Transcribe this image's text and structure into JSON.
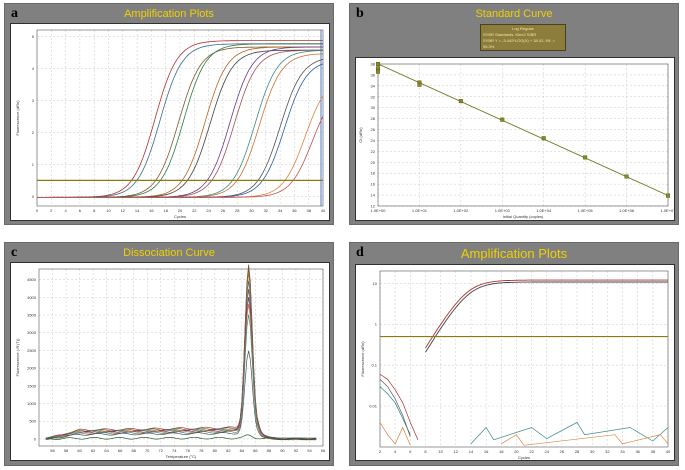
{
  "panels": {
    "a": {
      "tag": "a",
      "title": "Amplification Plots",
      "ylabel": "Fluorescence (dRn)",
      "xlabel": "Cycles"
    },
    "b": {
      "tag": "b",
      "title": "Standard Curve",
      "ylabel": "Ct (dRn)",
      "xlabel": "Initial Quantity (copies)",
      "legend": {
        "title": "Log Regular",
        "line1": "SYBR Standards, Kleo2 SIBR",
        "line2": "SYBR Y = -3.442*LOG(X) + 38.02, Eff. = 95.3%"
      }
    },
    "c": {
      "tag": "c",
      "title": "Dissociation Curve",
      "ylabel": "Fluorescence (-R'(T))",
      "xlabel": "Temperature (°C)"
    },
    "d": {
      "tag": "d",
      "title": "Amplification Plots",
      "ylabel": "Fluorescence (dRn)",
      "xlabel": "Cycles"
    }
  },
  "chart_data": [
    {
      "id": "a",
      "type": "line",
      "title": "Amplification Plots",
      "xlabel": "Cycles",
      "ylabel": "Fluorescence (dRn)",
      "xlim": [
        0,
        40
      ],
      "ylim": [
        -0.3,
        5.2
      ],
      "x_ticks": [
        0,
        2,
        4,
        6,
        8,
        10,
        12,
        14,
        16,
        18,
        20,
        22,
        24,
        26,
        28,
        30,
        32,
        34,
        36,
        38,
        40
      ],
      "y_ticks": [
        0,
        1,
        2,
        3,
        4,
        5
      ],
      "threshold": 0.5,
      "series": [
        {
          "color": "#b03030",
          "ct": 13.5,
          "plateau": 4.9
        },
        {
          "color": "#3a6a8a",
          "ct": 14.2,
          "plateau": 4.8
        },
        {
          "color": "#7a5a2a",
          "ct": 16.8,
          "plateau": 4.7
        },
        {
          "color": "#2a7a4a",
          "ct": 17.5,
          "plateau": 4.8
        },
        {
          "color": "#c06020",
          "ct": 20.5,
          "plateau": 4.7
        },
        {
          "color": "#404040",
          "ct": 21.2,
          "plateau": 4.6
        },
        {
          "color": "#6a3a8a",
          "ct": 24.0,
          "plateau": 4.7
        },
        {
          "color": "#a05050",
          "ct": 24.6,
          "plateau": 4.6
        },
        {
          "color": "#3a8a8a",
          "ct": 27.5,
          "plateau": 4.6
        },
        {
          "color": "#d07030",
          "ct": 28.1,
          "plateau": 4.5
        },
        {
          "color": "#505050",
          "ct": 31.0,
          "plateau": 4.4
        },
        {
          "color": "#2a5aaa",
          "ct": 31.6,
          "plateau": 4.3
        },
        {
          "color": "#e08040",
          "ct": 34.5,
          "plateau": 3.8
        },
        {
          "color": "#c05050",
          "ct": 35.5,
          "plateau": 3.5
        }
      ]
    },
    {
      "id": "b",
      "type": "scatter",
      "title": "Standard Curve",
      "xlabel": "Initial Quantity (copies)",
      "ylabel": "Ct (dRn)",
      "x_scale": "log",
      "xlim": [
        1,
        10000000
      ],
      "ylim": [
        12,
        38
      ],
      "x_tick_labels": [
        "1.0E+00",
        "1.0E+01",
        "1.0E+02",
        "1.0E+03",
        "1.0E+04",
        "1.0E+05",
        "1.0E+06",
        "1.0E+07"
      ],
      "y_ticks": [
        12,
        14,
        16,
        18,
        20,
        22,
        24,
        26,
        28,
        30,
        32,
        34,
        36,
        38
      ],
      "fit": {
        "slope": -3.442,
        "intercept": 38.02
      },
      "points": [
        {
          "x": 1,
          "y": 38.0
        },
        {
          "x": 1,
          "y": 37.2
        },
        {
          "x": 1,
          "y": 36.6
        },
        {
          "x": 10,
          "y": 34.6
        },
        {
          "x": 10,
          "y": 34.2
        },
        {
          "x": 100,
          "y": 31.2
        },
        {
          "x": 1000,
          "y": 27.8
        },
        {
          "x": 10000,
          "y": 24.4
        },
        {
          "x": 100000,
          "y": 20.9
        },
        {
          "x": 1000000,
          "y": 17.4
        },
        {
          "x": 10000000,
          "y": 13.9
        }
      ]
    },
    {
      "id": "c",
      "type": "line",
      "title": "Dissociation Curve",
      "xlabel": "Temperature (°C)",
      "ylabel": "Fluorescence (-R'(T))",
      "xlim": [
        54,
        96
      ],
      "ylim": [
        -200,
        4800
      ],
      "x_ticks": [
        56,
        58,
        60,
        62,
        64,
        66,
        68,
        70,
        72,
        74,
        76,
        78,
        80,
        82,
        84,
        86,
        88,
        90,
        92,
        94,
        96
      ],
      "y_ticks": [
        0,
        500,
        1000,
        1500,
        2000,
        2500,
        3000,
        3500,
        4000,
        4500
      ],
      "peak_temperature": 85.0,
      "series": [
        {
          "color": "#b03030",
          "peak": 4600,
          "base": 280
        },
        {
          "color": "#2a7a4a",
          "peak": 4500,
          "base": 260
        },
        {
          "color": "#c06020",
          "peak": 4400,
          "base": 240
        },
        {
          "color": "#3a6a8a",
          "peak": 4200,
          "base": 230
        },
        {
          "color": "#7a5a2a",
          "peak": 4000,
          "base": 220
        },
        {
          "color": "#6a3a8a",
          "peak": 3800,
          "base": 200
        },
        {
          "color": "#d07030",
          "peak": 3600,
          "base": 190
        },
        {
          "color": "#3a8a8a",
          "peak": 3300,
          "base": 170
        },
        {
          "color": "#505050",
          "peak": 2300,
          "base": 140
        },
        {
          "color": "#2a5a2a",
          "peak": 80,
          "base": 20
        }
      ]
    },
    {
      "id": "d",
      "type": "line",
      "title": "Amplification Plots",
      "xlabel": "Cycles",
      "ylabel": "Fluorescence (dRn)",
      "y_scale": "log",
      "xlim": [
        2,
        40
      ],
      "ylim": [
        0.001,
        20
      ],
      "x_ticks": [
        2,
        4,
        6,
        8,
        10,
        12,
        14,
        16,
        18,
        20,
        22,
        24,
        26,
        28,
        30,
        32,
        34,
        36,
        38,
        40
      ],
      "y_tick_labels": [
        "10",
        "1",
        "0.1",
        "0.01"
      ],
      "threshold": 0.5,
      "series": [
        {
          "color": "#b03030",
          "ct": 11.0,
          "plateau": 12
        },
        {
          "color": "#404040",
          "ct": 11.2,
          "plateau": 11
        }
      ]
    }
  ]
}
